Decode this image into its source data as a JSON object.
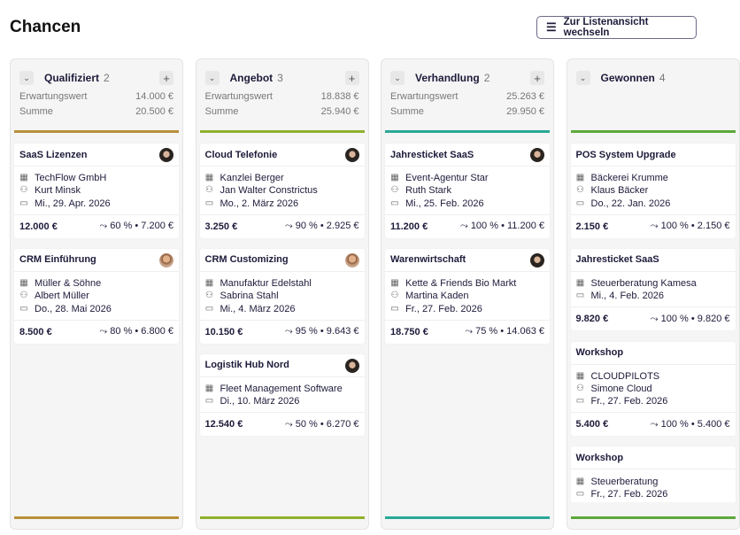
{
  "page": {
    "title": "Chancen",
    "list_view_label": "Zur Listenansicht wechseln"
  },
  "columns": [
    {
      "name": "Qualifiziert",
      "count": "2",
      "expected_label": "Erwartungswert",
      "expected": "14.000 €",
      "sum_label": "Summe",
      "sum": "20.500 €",
      "color": "#b8903a",
      "cards": [
        {
          "title": "SaaS Lizenzen",
          "avatar": "w",
          "company": "TechFlow GmbH",
          "contact": "Kurt Minsk",
          "date": "Mi., 29. Apr. 2026",
          "amount": "12.000 €",
          "probability": "60 %",
          "weighted": "7.200 €"
        },
        {
          "title": "CRM Einführung",
          "avatar": "m",
          "company": "Müller & Söhne",
          "contact": "Albert Müller",
          "date": "Do., 28. Mai 2026",
          "amount": "8.500 €",
          "probability": "80 %",
          "weighted": "6.800 €"
        }
      ]
    },
    {
      "name": "Angebot",
      "count": "3",
      "expected_label": "Erwartungswert",
      "expected": "18.838 €",
      "sum_label": "Summe",
      "sum": "25.940 €",
      "color": "#8fb02e",
      "cards": [
        {
          "title": "Cloud Telefonie",
          "avatar": "w",
          "company": "Kanzlei Berger",
          "contact": "Jan Walter Constrictus",
          "date": "Mo., 2. März 2026",
          "amount": "3.250 €",
          "probability": "90 %",
          "weighted": "2.925 €"
        },
        {
          "title": "CRM Customizing",
          "avatar": "m",
          "company": "Manufaktur Edelstahl",
          "contact": "Sabrina Stahl",
          "date": "Mi., 4. März 2026",
          "amount": "10.150 €",
          "probability": "95 %",
          "weighted": "9.643 €"
        },
        {
          "title": "Logistik Hub Nord",
          "avatar": "w",
          "company": "Fleet Management Software",
          "date": "Di., 10. März 2026",
          "amount": "12.540 €",
          "probability": "50 %",
          "weighted": "6.270 €"
        }
      ]
    },
    {
      "name": "Verhandlung",
      "count": "2",
      "expected_label": "Erwartungswert",
      "expected": "25.263 €",
      "sum_label": "Summe",
      "sum": "29.950 €",
      "color": "#2aa897",
      "cards": [
        {
          "title": "Jahresticket SaaS",
          "avatar": "w",
          "company": "Event-Agentur Star",
          "contact": "Ruth Stark",
          "date": "Mi., 25. Feb. 2026",
          "amount": "11.200 €",
          "probability": "100 %",
          "weighted": "11.200 €"
        },
        {
          "title": "Warenwirtschaft",
          "avatar": "w",
          "company": "Kette & Friends Bio Markt",
          "contact": "Martina Kaden",
          "date": "Fr., 27. Feb. 2026",
          "amount": "18.750 €",
          "probability": "75 %",
          "weighted": "14.063 €"
        }
      ]
    },
    {
      "name": "Gewonnen",
      "count": "4",
      "color": "#5da83a",
      "cards": [
        {
          "title": "POS System Upgrade",
          "company": "Bäckerei Krumme",
          "contact": "Klaus Bäcker",
          "date": "Do., 22. Jan. 2026",
          "amount": "2.150 €",
          "probability": "100 %",
          "weighted": "2.150 €"
        },
        {
          "title": "Jahresticket SaaS",
          "company": "Steuerberatung Kamesa",
          "date": "Mi., 4. Feb. 2026",
          "amount": "9.820 €",
          "probability": "100 %",
          "weighted": "9.820 €"
        },
        {
          "title": "Workshop",
          "company": "CLOUDPILOTS",
          "contact": "Simone Cloud",
          "date": "Fr., 27. Feb. 2026",
          "amount": "5.400 €",
          "probability": "100 %",
          "weighted": "5.400 €"
        },
        {
          "title": "Workshop",
          "company": "Steuerberatung",
          "date": "Fr., 27. Feb. 2026"
        }
      ]
    }
  ]
}
